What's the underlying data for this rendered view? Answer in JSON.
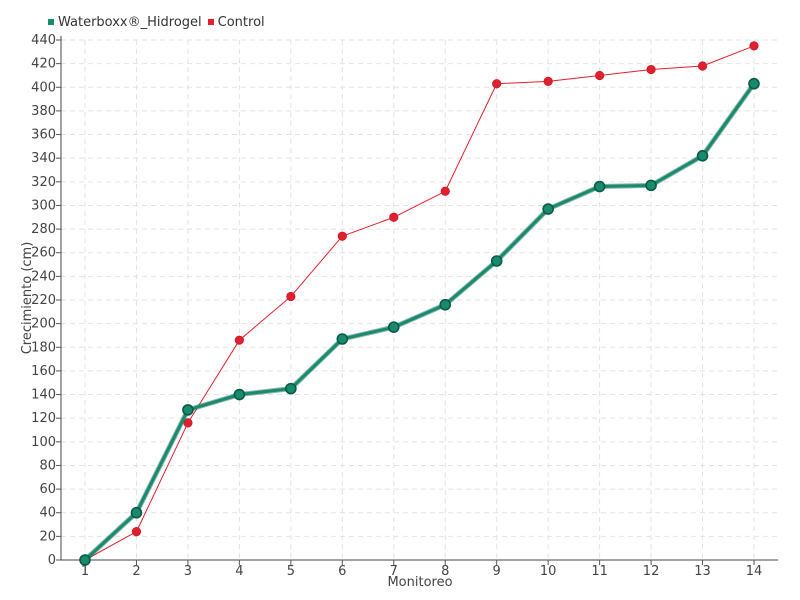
{
  "chart_data": {
    "type": "line",
    "title": "",
    "xlabel": "Monitoreo",
    "ylabel": "Crecimiento (cm)",
    "categories": [
      "1",
      "2",
      "3",
      "4",
      "5",
      "6",
      "7",
      "8",
      "9",
      "10",
      "11",
      "12",
      "13",
      "14"
    ],
    "ylim": [
      0,
      440
    ],
    "ytick_step": 20,
    "grid": true,
    "legend_position": "top-left",
    "series": [
      {
        "name": "Waterboxx®_Hidrogel",
        "color": "#1a8a6e",
        "values": [
          0,
          40,
          127,
          140,
          145,
          187,
          197,
          216,
          253,
          297,
          316,
          317,
          342,
          403
        ]
      },
      {
        "name": "Control",
        "color": "#e0202f",
        "values": [
          0,
          24,
          116,
          186,
          223,
          274,
          290,
          312,
          403,
          405,
          410,
          415,
          418,
          435
        ]
      }
    ]
  }
}
